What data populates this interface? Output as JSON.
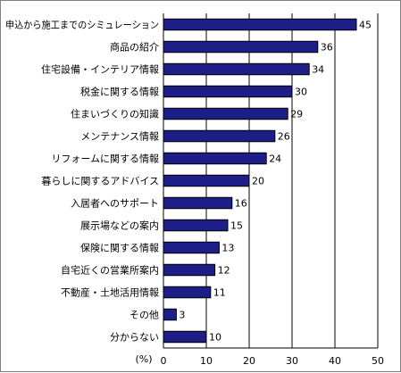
{
  "chart_data": {
    "type": "bar",
    "orientation": "horizontal",
    "categories": [
      "申込から施工までのシミュレーション",
      "商品の紹介",
      "住宅設備・インテリア情報",
      "税金に関する情報",
      "住まいづくりの知識",
      "メンテナンス情報",
      "リフォームに関する情報",
      "暮らしに関するアドバイス",
      "入居者へのサポート",
      "展示場などの案内",
      "保険に関する情報",
      "自宅近くの営業所案内",
      "不動産・土地活用情報",
      "その他",
      "分からない"
    ],
    "values": [
      45,
      36,
      34,
      30,
      29,
      26,
      24,
      20,
      16,
      15,
      13,
      12,
      11,
      3,
      10
    ],
    "value_labels": [
      "45",
      "36",
      "34",
      "30",
      "29",
      "26",
      "24",
      "20",
      "16",
      "15",
      "13",
      "12",
      "11",
      "3",
      "10"
    ],
    "xlim": [
      0,
      50
    ],
    "ticks": [
      "0",
      "10",
      "20",
      "30",
      "40",
      "50"
    ],
    "unit_label": "(%)",
    "grid": true,
    "colors": {
      "bar_fill": "#1e1e88",
      "bar_stroke": "#000000",
      "grid": "#000000"
    }
  }
}
